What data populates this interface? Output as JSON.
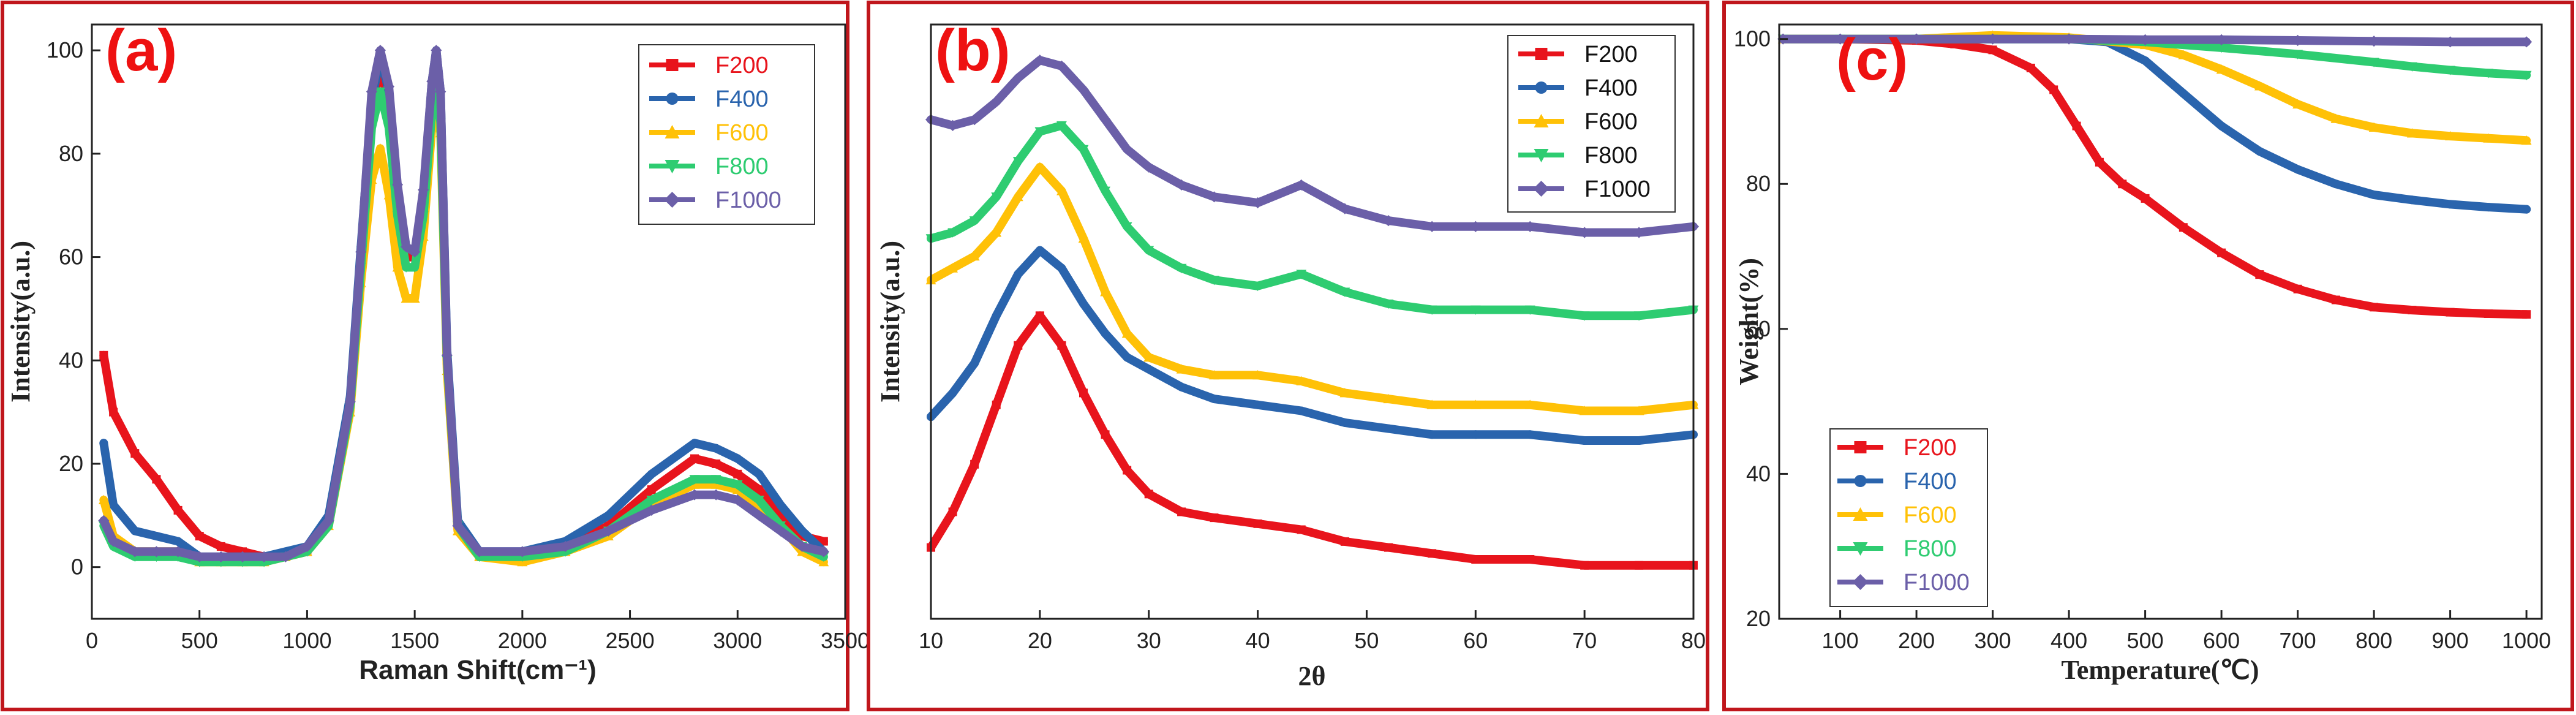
{
  "chart_data": [
    {
      "panel": "(a)",
      "type": "line",
      "title": "",
      "xlabel": "Raman Shift(cm⁻¹)",
      "ylabel": "Intensity(a.u.)",
      "xlim": [
        0,
        3500
      ],
      "ylim": [
        -10,
        105
      ],
      "xticks": [
        0,
        500,
        1000,
        1500,
        2000,
        2500,
        3000,
        3500
      ],
      "yticks": [
        0,
        20,
        40,
        60,
        80,
        100
      ],
      "legend_position": "top-right",
      "series": [
        {
          "name": "F200",
          "color": "#e8141c",
          "marker": "square",
          "x": [
            55,
            100,
            200,
            300,
            400,
            500,
            600,
            700,
            800,
            900,
            1000,
            1100,
            1200,
            1250,
            1300,
            1340,
            1380,
            1420,
            1460,
            1500,
            1540,
            1580,
            1600,
            1620,
            1650,
            1700,
            1800,
            2000,
            2200,
            2400,
            2600,
            2800,
            2900,
            3000,
            3100,
            3200,
            3300,
            3400
          ],
          "y": [
            41,
            30,
            22,
            17,
            11,
            6,
            4,
            3,
            2,
            2,
            3,
            9,
            32,
            60,
            88,
            97,
            90,
            70,
            60,
            60,
            70,
            92,
            99,
            90,
            40,
            8,
            2,
            2,
            4,
            8,
            15,
            21,
            20,
            18,
            15,
            10,
            6,
            5
          ]
        },
        {
          "name": "F400",
          "color": "#2a64ad",
          "marker": "circle",
          "x": [
            55,
            100,
            200,
            300,
            400,
            500,
            600,
            700,
            800,
            900,
            1000,
            1100,
            1200,
            1250,
            1300,
            1340,
            1380,
            1420,
            1460,
            1500,
            1540,
            1580,
            1600,
            1620,
            1650,
            1700,
            1800,
            2000,
            2200,
            2400,
            2600,
            2800,
            2900,
            3000,
            3100,
            3200,
            3300,
            3400
          ],
          "y": [
            24,
            12,
            7,
            6,
            5,
            2,
            2,
            2,
            2,
            3,
            4,
            10,
            33,
            62,
            90,
            99,
            92,
            72,
            62,
            61,
            72,
            94,
            100,
            92,
            42,
            9,
            3,
            3,
            5,
            10,
            18,
            24,
            23,
            21,
            18,
            12,
            7,
            3
          ]
        },
        {
          "name": "F600",
          "color": "#ffc107",
          "marker": "triangle-up",
          "x": [
            55,
            100,
            200,
            300,
            400,
            500,
            600,
            700,
            800,
            900,
            1000,
            1100,
            1200,
            1250,
            1300,
            1340,
            1380,
            1420,
            1460,
            1500,
            1540,
            1580,
            1600,
            1620,
            1650,
            1700,
            1800,
            2000,
            2200,
            2400,
            2600,
            2800,
            2900,
            3000,
            3100,
            3200,
            3300,
            3400
          ],
          "y": [
            13,
            6,
            3,
            3,
            3,
            1,
            1,
            1,
            1,
            2,
            3,
            8,
            30,
            55,
            75,
            81,
            72,
            58,
            52,
            52,
            64,
            85,
            92,
            84,
            38,
            7,
            2,
            1,
            3,
            6,
            12,
            16,
            16,
            15,
            12,
            8,
            3,
            1
          ]
        },
        {
          "name": "F800",
          "color": "#2ecc71",
          "marker": "triangle-down",
          "x": [
            55,
            100,
            200,
            300,
            400,
            500,
            600,
            700,
            800,
            900,
            1000,
            1100,
            1200,
            1250,
            1300,
            1340,
            1380,
            1420,
            1460,
            1500,
            1540,
            1580,
            1600,
            1620,
            1650,
            1700,
            1800,
            2000,
            2200,
            2400,
            2600,
            2800,
            2900,
            3000,
            3100,
            3200,
            3300,
            3400
          ],
          "y": [
            8,
            4,
            2,
            2,
            2,
            1,
            1,
            1,
            1,
            2,
            3,
            8,
            31,
            58,
            85,
            92,
            85,
            68,
            58,
            58,
            68,
            88,
            95,
            86,
            40,
            8,
            2,
            2,
            3,
            7,
            13,
            17,
            17,
            16,
            13,
            8,
            4,
            2
          ]
        },
        {
          "name": "F1000",
          "color": "#6b5fa8",
          "marker": "diamond",
          "x": [
            55,
            100,
            200,
            300,
            400,
            500,
            600,
            700,
            800,
            900,
            1000,
            1100,
            1200,
            1250,
            1300,
            1340,
            1380,
            1420,
            1460,
            1500,
            1540,
            1580,
            1600,
            1620,
            1650,
            1700,
            1800,
            2000,
            2200,
            2400,
            2600,
            2800,
            2900,
            3000,
            3100,
            3200,
            3300,
            3400
          ],
          "y": [
            9,
            5,
            3,
            3,
            3,
            2,
            2,
            2,
            2,
            2,
            4,
            9,
            32,
            61,
            92,
            100,
            93,
            74,
            62,
            61,
            73,
            94,
            100,
            92,
            41,
            8,
            3,
            3,
            4,
            7,
            11,
            14,
            14,
            13,
            10,
            7,
            4,
            3
          ]
        }
      ]
    },
    {
      "panel": "(b)",
      "type": "line",
      "title": "",
      "xlabel": "2θ",
      "ylabel": "Intensity(a.u.)",
      "xlim": [
        10,
        80
      ],
      "ylim": [
        0,
        100
      ],
      "xticks": [
        10,
        20,
        30,
        40,
        50,
        60,
        70,
        80
      ],
      "yticks": [],
      "legend_position": "top-right",
      "series": [
        {
          "name": "F200",
          "color": "#e8141c",
          "marker": "square",
          "x": [
            10,
            12,
            14,
            16,
            18,
            20,
            22,
            24,
            26,
            28,
            30,
            33,
            36,
            40,
            44,
            48,
            52,
            56,
            60,
            65,
            70,
            75,
            80
          ],
          "y": [
            12,
            18,
            26,
            36,
            46,
            51,
            46,
            38,
            31,
            25,
            21,
            18,
            17,
            16,
            15,
            13,
            12,
            11,
            10,
            10,
            9,
            9,
            9
          ]
        },
        {
          "name": "F400",
          "color": "#2a64ad",
          "marker": "circle",
          "x": [
            10,
            12,
            14,
            16,
            18,
            20,
            22,
            24,
            26,
            28,
            30,
            33,
            36,
            40,
            44,
            48,
            52,
            56,
            60,
            65,
            70,
            75,
            80
          ],
          "y": [
            34,
            38,
            43,
            51,
            58,
            62,
            59,
            53,
            48,
            44,
            42,
            39,
            37,
            36,
            35,
            33,
            32,
            31,
            31,
            31,
            30,
            30,
            31
          ]
        },
        {
          "name": "F600",
          "color": "#ffc107",
          "marker": "triangle-up",
          "x": [
            10,
            12,
            14,
            16,
            18,
            20,
            22,
            24,
            26,
            28,
            30,
            33,
            36,
            40,
            44,
            48,
            52,
            56,
            60,
            65,
            70,
            75,
            80
          ],
          "y": [
            57,
            59,
            61,
            65,
            71,
            76,
            72,
            64,
            55,
            48,
            44,
            42,
            41,
            41,
            40,
            38,
            37,
            36,
            36,
            36,
            35,
            35,
            36
          ]
        },
        {
          "name": "F800",
          "color": "#2ecc71",
          "marker": "triangle-down",
          "x": [
            10,
            12,
            14,
            16,
            18,
            20,
            22,
            24,
            26,
            28,
            30,
            33,
            36,
            40,
            44,
            48,
            52,
            56,
            60,
            65,
            70,
            75,
            80
          ],
          "y": [
            64,
            65,
            67,
            71,
            77,
            82,
            83,
            79,
            72,
            66,
            62,
            59,
            57,
            56,
            58,
            55,
            53,
            52,
            52,
            52,
            51,
            51,
            52
          ]
        },
        {
          "name": "F1000",
          "color": "#6b5fa8",
          "marker": "diamond",
          "x": [
            10,
            12,
            14,
            16,
            18,
            20,
            22,
            24,
            26,
            28,
            30,
            33,
            36,
            40,
            44,
            48,
            52,
            56,
            60,
            65,
            70,
            75,
            80
          ],
          "y": [
            84,
            83,
            84,
            87,
            91,
            94,
            93,
            89,
            84,
            79,
            76,
            73,
            71,
            70,
            73,
            69,
            67,
            66,
            66,
            66,
            65,
            65,
            66
          ]
        }
      ]
    },
    {
      "panel": "(c)",
      "type": "line",
      "title": "",
      "xlabel": "Temperature(℃)",
      "ylabel": "Weight(%)",
      "xlim": [
        20,
        1020
      ],
      "ylim": [
        20,
        102
      ],
      "xticks": [
        100,
        200,
        300,
        400,
        500,
        600,
        700,
        800,
        900,
        1000
      ],
      "yticks": [
        20,
        40,
        60,
        80,
        100
      ],
      "legend_position": "bottom-left",
      "series": [
        {
          "name": "F200",
          "color": "#e8141c",
          "marker": "square",
          "x": [
            25,
            100,
            200,
            250,
            300,
            350,
            380,
            410,
            440,
            470,
            500,
            550,
            600,
            650,
            700,
            750,
            800,
            850,
            900,
            950,
            1000
          ],
          "y": [
            100,
            100,
            99.8,
            99.3,
            98.5,
            96,
            93,
            88,
            83,
            80,
            78,
            74,
            70.5,
            67.5,
            65.5,
            64,
            63,
            62.6,
            62.3,
            62.1,
            62
          ]
        },
        {
          "name": "F400",
          "color": "#2a64ad",
          "marker": "circle",
          "x": [
            25,
            100,
            200,
            300,
            400,
            450,
            500,
            550,
            600,
            650,
            700,
            750,
            800,
            850,
            900,
            950,
            1000
          ],
          "y": [
            100,
            100,
            100,
            100,
            100,
            99.6,
            97,
            92.5,
            88,
            84.5,
            82,
            80,
            78.5,
            77.8,
            77.2,
            76.8,
            76.5
          ]
        },
        {
          "name": "F600",
          "color": "#ffc107",
          "marker": "triangle-up",
          "x": [
            25,
            100,
            200,
            300,
            400,
            500,
            550,
            600,
            650,
            700,
            750,
            800,
            850,
            900,
            950,
            1000
          ],
          "y": [
            100,
            100,
            100,
            100.5,
            100.2,
            99.2,
            97.8,
            95.8,
            93.5,
            91,
            89,
            87.8,
            87,
            86.6,
            86.3,
            86
          ]
        },
        {
          "name": "F800",
          "color": "#2ecc71",
          "marker": "triangle-down",
          "x": [
            25,
            100,
            200,
            300,
            400,
            500,
            600,
            700,
            800,
            850,
            900,
            950,
            1000
          ],
          "y": [
            100,
            100,
            100,
            100,
            100,
            99.6,
            98.8,
            97.9,
            96.8,
            96.2,
            95.7,
            95.3,
            95
          ]
        },
        {
          "name": "F1000",
          "color": "#6b5fa8",
          "marker": "diamond",
          "x": [
            25,
            100,
            200,
            300,
            400,
            500,
            600,
            700,
            800,
            900,
            1000
          ],
          "y": [
            100,
            100,
            100,
            100,
            100,
            99.9,
            99.9,
            99.8,
            99.7,
            99.6,
            99.6
          ]
        }
      ]
    }
  ]
}
